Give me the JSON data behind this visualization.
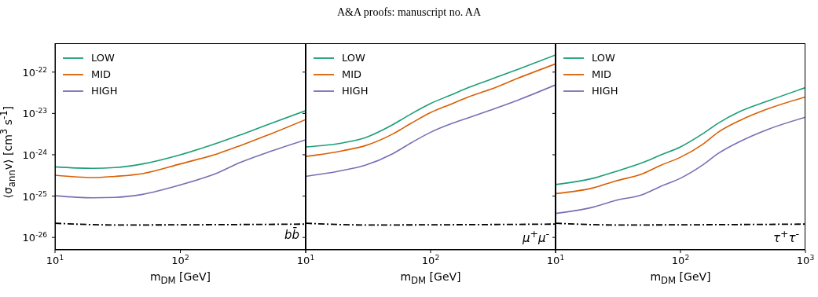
{
  "chart_data": [
    {
      "type": "line",
      "xlabel": "m$_{DM}$ [GeV]",
      "ylabel": "⟨σ$_{ann}$v⟩ [cm$^{3}$ s$^{-1}$]",
      "log": "xy",
      "legend": "top left",
      "grid": false,
      "marker": "none",
      "annotations": [
        "bb̄"
      ],
      "xlim": [
        10,
        1000
      ],
      "xticks": [
        {
          "value": 10,
          "label": "10$^{1}$"
        },
        {
          "value": 100,
          "label": "10$^{2}$"
        },
        {
          "value": 1000,
          "label": null
        }
      ],
      "ylim": [
        5e-27,
        5e-22
      ],
      "yticks": [
        {
          "value": 1e-26,
          "label": "10$^{-26}$"
        },
        {
          "value": 1e-25,
          "label": "10$^{-25}$"
        },
        {
          "value": 1e-24,
          "label": "10$^{-24}$"
        },
        {
          "value": 1e-23,
          "label": "10$^{-23}$"
        },
        {
          "value": 1e-22,
          "label": "10$^{-22}$"
        }
      ],
      "series": [
        {
          "name": "LOW",
          "color": "#1b9e77",
          "x": [
            10,
            20,
            30,
            50,
            100,
            200,
            300,
            500,
            1000
          ],
          "values": [
            5.1e-25,
            4.7e-25,
            4.9e-25,
            6e-25,
            1e-24,
            1.95e-24,
            3e-24,
            5.4e-24,
            1.17e-23
          ]
        },
        {
          "name": "MID",
          "color": "#d95f02",
          "x": [
            10,
            20,
            30,
            50,
            100,
            200,
            300,
            500,
            1000
          ],
          "values": [
            3.2e-25,
            2.8e-25,
            3e-25,
            3.5e-25,
            6e-25,
            1.07e-24,
            1.66e-24,
            3e-24,
            7.1e-24
          ]
        },
        {
          "name": "HIGH",
          "color": "#7570b3",
          "x": [
            10,
            20,
            30,
            50,
            100,
            200,
            300,
            500,
            1000
          ],
          "values": [
            1.02e-25,
            9.1e-26,
            9.3e-26,
            1.1e-25,
            1.86e-25,
            3.7e-25,
            6.5e-25,
            1.15e-24,
            2.3e-24
          ]
        },
        {
          "color": "#000000",
          "line_style": "dashed",
          "x": [
            10,
            30,
            1000
          ],
          "values": [
            2.2e-26,
            2e-26,
            2.1e-26
          ]
        }
      ]
    },
    {
      "type": "line",
      "title": "A&A proofs: manuscript no. AA",
      "xlabel": "m$_{DM}$ [GeV]",
      "log": "xy",
      "legend": "top left",
      "grid": false,
      "marker": "none",
      "tick_labels": "x",
      "annotations": [
        "μ$^{+}$μ$^{-}$"
      ],
      "xlim": [
        10,
        1000
      ],
      "xticks": [
        {
          "value": 10,
          "label": "10$^{1}$"
        },
        {
          "value": 100,
          "label": "10$^{2}$"
        },
        {
          "value": 1000,
          "label": null
        }
      ],
      "ylim": [
        5e-27,
        5e-22
      ],
      "yticks": [
        1e-26,
        1e-25,
        1e-24,
        1e-23,
        1e-22
      ],
      "series": [
        {
          "name": "LOW",
          "color": "#1b9e77",
          "x": [
            10,
            20,
            30,
            50,
            70,
            100,
            150,
            200,
            300,
            500,
            1000
          ],
          "values": [
            1.55e-24,
            1.95e-24,
            2.6e-24,
            5.4e-24,
            9.8e-24,
            1.74e-23,
            2.9e-23,
            4.2e-23,
            6.6e-23,
            1.17e-22,
            2.6e-22
          ]
        },
        {
          "name": "MID",
          "color": "#d95f02",
          "x": [
            10,
            20,
            30,
            50,
            70,
            100,
            150,
            200,
            300,
            500,
            1000
          ],
          "values": [
            9.1e-25,
            1.26e-24,
            1.66e-24,
            3.2e-24,
            5.8e-24,
            1.05e-23,
            1.74e-23,
            2.5e-23,
            3.8e-23,
            7.1e-23,
            1.58e-22
          ]
        },
        {
          "name": "HIGH",
          "color": "#7570b3",
          "x": [
            10,
            20,
            30,
            50,
            70,
            100,
            150,
            200,
            300,
            500,
            1000
          ],
          "values": [
            3e-25,
            4.2e-25,
            5.6e-25,
            1.07e-24,
            1.95e-24,
            3.5e-24,
            5.8e-24,
            7.8e-24,
            1.2e-23,
            2.1e-23,
            4.9e-23
          ]
        },
        {
          "color": "#000000",
          "line_style": "dashed",
          "x": [
            10,
            30,
            1000
          ],
          "values": [
            2.2e-26,
            2e-26,
            2.1e-26
          ]
        }
      ]
    },
    {
      "type": "line",
      "xlabel": "m$_{DM}$ [GeV]",
      "log": "xy",
      "legend": "top left",
      "grid": false,
      "marker": "none",
      "tick_labels": "x",
      "annotations": [
        "τ$^{+}$τ$^{-}$"
      ],
      "xlim": [
        10,
        1000
      ],
      "xticks": [
        {
          "value": 10,
          "label": "10$^{1}$"
        },
        {
          "value": 100,
          "label": "10$^{2}$"
        },
        {
          "value": 1000,
          "label": "10$^{3}$"
        }
      ],
      "ylim": [
        5e-27,
        5e-22
      ],
      "yticks": [
        1e-26,
        1e-25,
        1e-24,
        1e-23,
        1e-22
      ],
      "series": [
        {
          "name": "LOW",
          "color": "#1b9e77",
          "x": [
            10,
            20,
            30,
            50,
            70,
            100,
            150,
            200,
            300,
            500,
            1000
          ],
          "values": [
            1.9e-25,
            2.7e-25,
            3.9e-25,
            6.5e-25,
            1e-24,
            1.55e-24,
            3.2e-24,
            5.8e-24,
            1.12e-23,
            2e-23,
            4.2e-23
          ]
        },
        {
          "name": "MID",
          "color": "#d95f02",
          "x": [
            10,
            20,
            30,
            50,
            70,
            100,
            150,
            200,
            300,
            500,
            1000
          ],
          "values": [
            1.15e-25,
            1.58e-25,
            2.3e-25,
            3.5e-25,
            5.6e-25,
            8.7e-25,
            1.78e-24,
            3.5e-24,
            6.8e-24,
            1.29e-23,
            2.5e-23
          ]
        },
        {
          "name": "HIGH",
          "color": "#7570b3",
          "x": [
            10,
            20,
            30,
            50,
            70,
            100,
            150,
            200,
            300,
            500,
            1000
          ],
          "values": [
            3.8e-26,
            5.4e-26,
            7.8e-26,
            1.1e-25,
            1.74e-25,
            2.7e-25,
            5.6e-25,
            1.07e-24,
            2.1e-24,
            4.1e-24,
            8.1e-24
          ]
        },
        {
          "color": "#000000",
          "line_style": "dashed",
          "x": [
            10,
            30,
            1000
          ],
          "values": [
            2.2e-26,
            2e-26,
            2.1e-26
          ]
        }
      ]
    }
  ]
}
